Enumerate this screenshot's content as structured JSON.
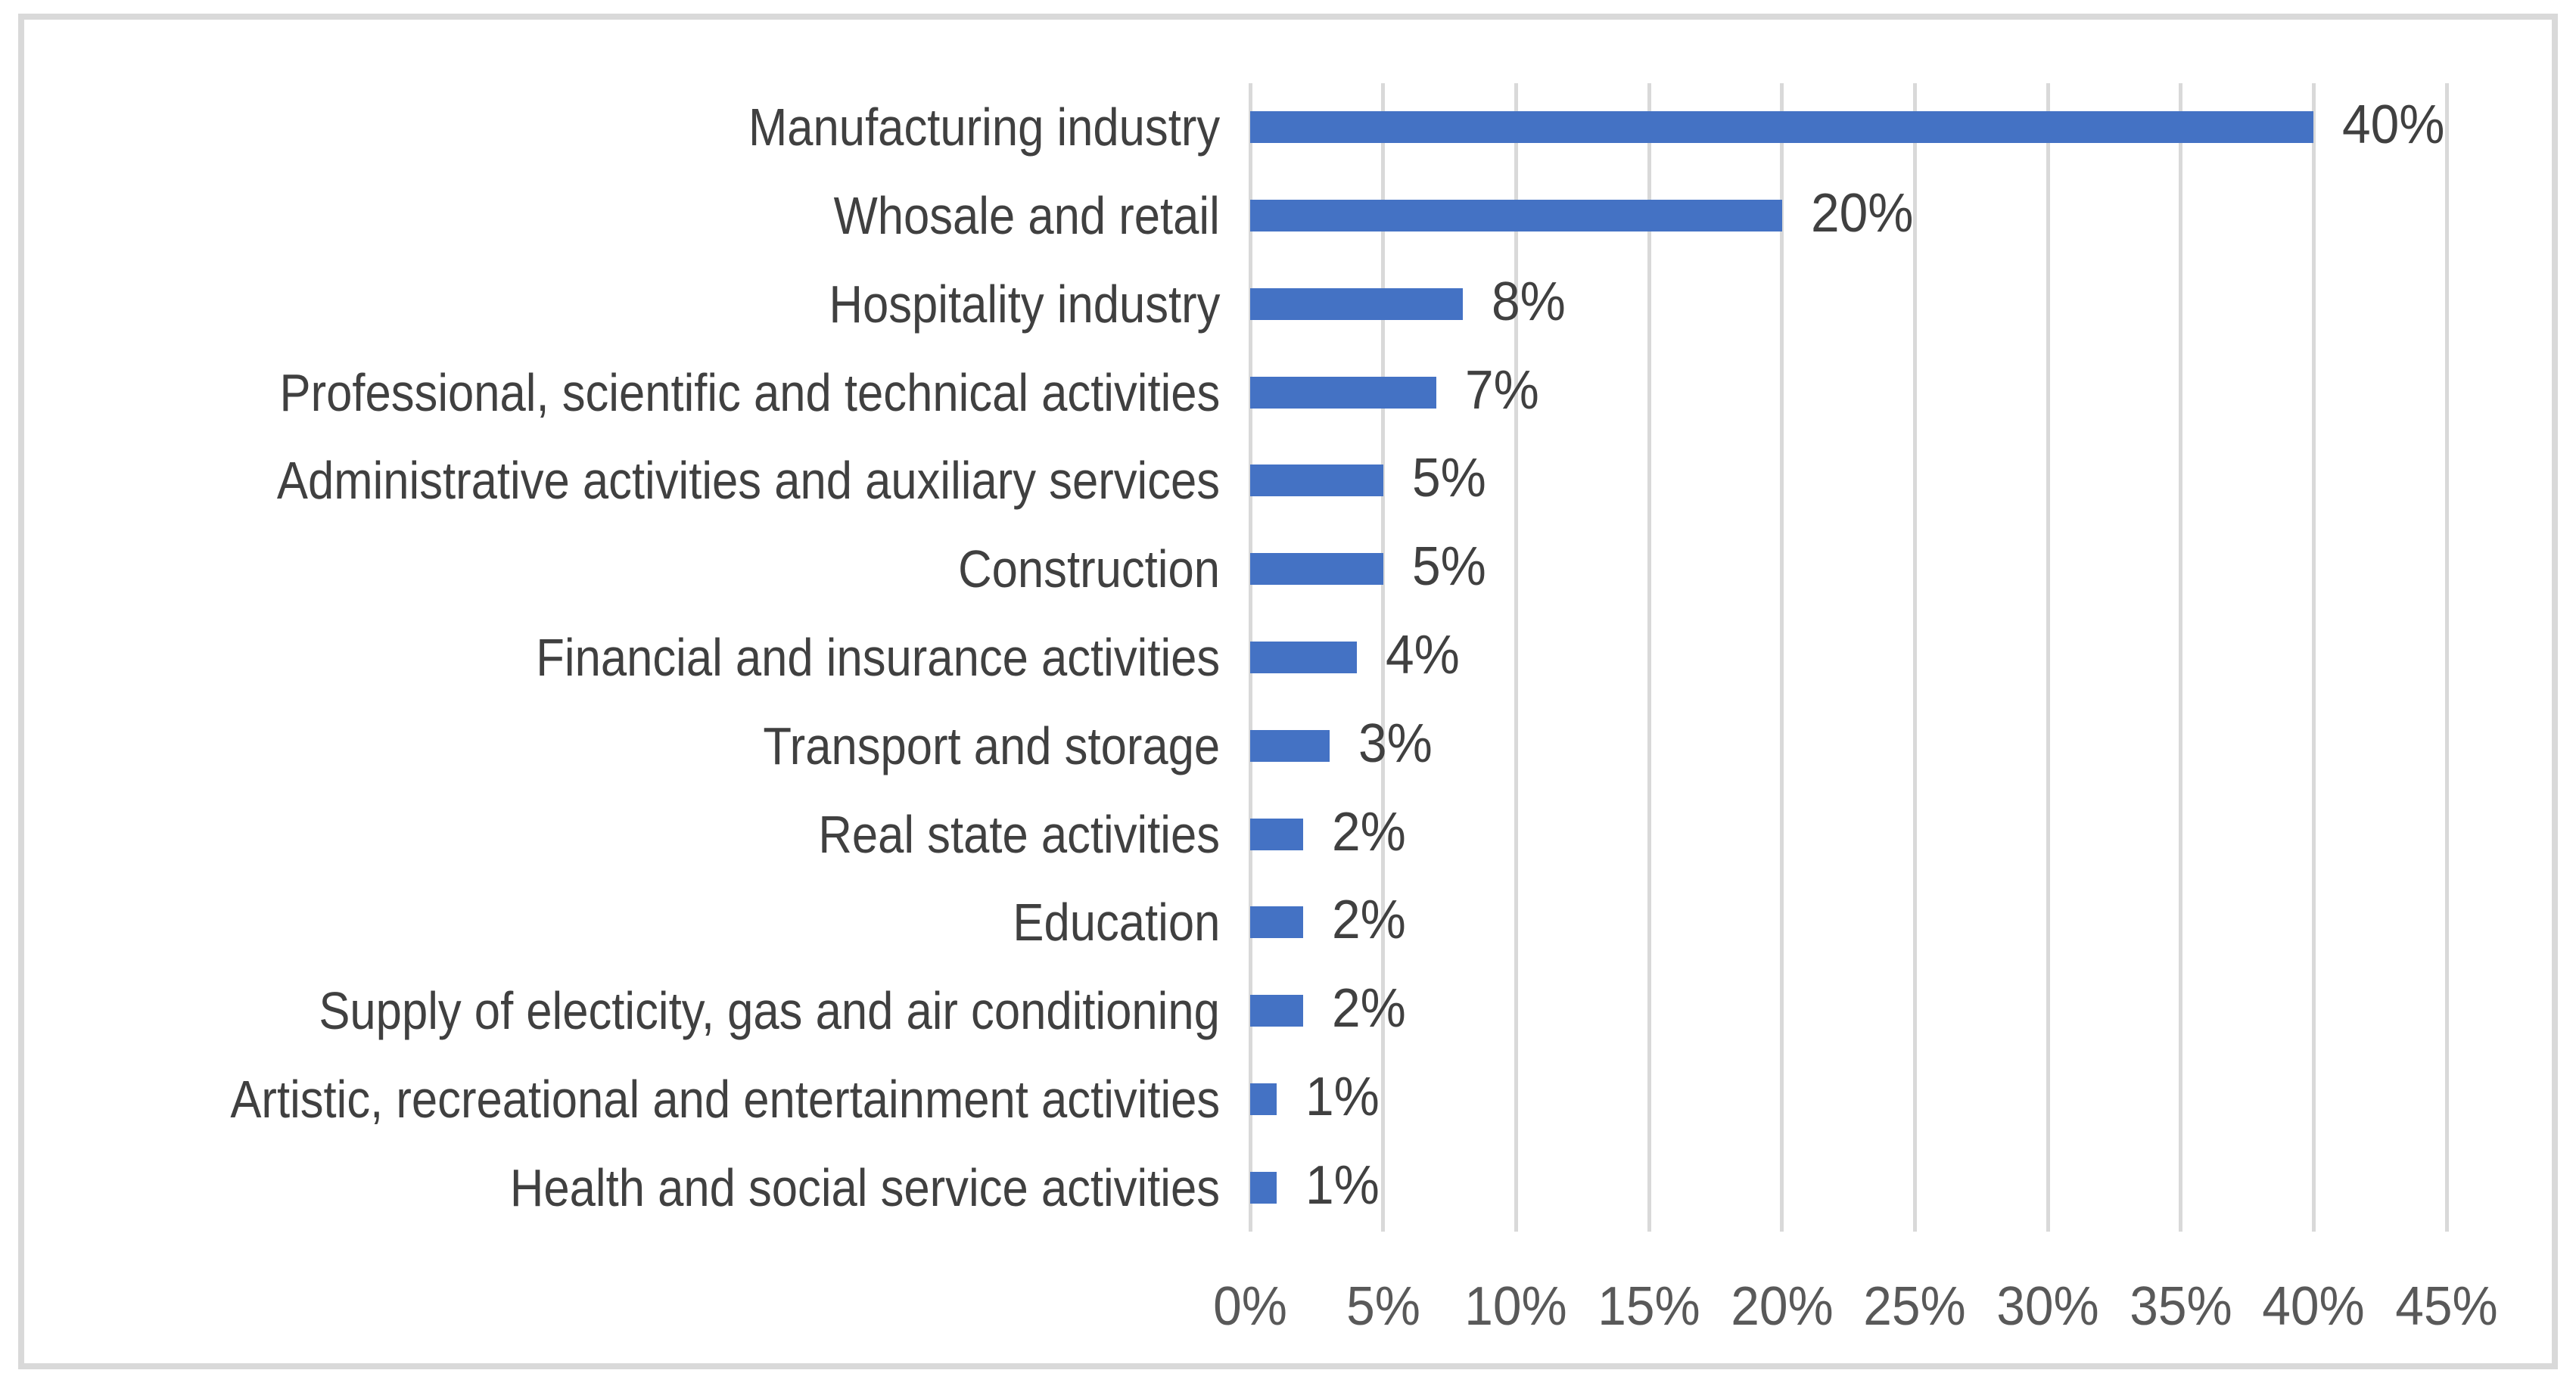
{
  "chart_data": {
    "type": "bar",
    "orientation": "horizontal",
    "title": "",
    "xlabel": "",
    "ylabel": "",
    "categories": [
      "Manufacturing industry",
      "Whosale and retail",
      "Hospitality industry",
      "Professional, scientific and technical activities",
      "Administrative activities and auxiliary services",
      "Construction",
      "Financial and insurance activities",
      "Transport and storage",
      "Real state activities",
      "Education",
      "Supply of electicity, gas and air conditioning",
      "Artistic, recreational and entertainment activities",
      "Health and social service activities"
    ],
    "values": [
      40,
      20,
      8,
      7,
      5,
      5,
      4,
      3,
      2,
      2,
      2,
      1,
      1
    ],
    "value_labels": [
      "40%",
      "20%",
      "8%",
      "7%",
      "5%",
      "5%",
      "4%",
      "3%",
      "2%",
      "2%",
      "2%",
      "1%",
      "1%"
    ],
    "xlim": [
      0,
      45
    ],
    "x_tick_step": 5,
    "x_tick_labels": [
      "0%",
      "5%",
      "10%",
      "15%",
      "20%",
      "25%",
      "30%",
      "35%",
      "40%",
      "45%"
    ],
    "grid": true,
    "legend": false,
    "colors": {
      "bar": "#4472C4",
      "gridline": "#D9D9D9",
      "frame_border": "#D9D9D9",
      "category_label": "#404040",
      "data_label": "#404040",
      "tick_label": "#595959",
      "background": "#FFFFFF"
    }
  }
}
